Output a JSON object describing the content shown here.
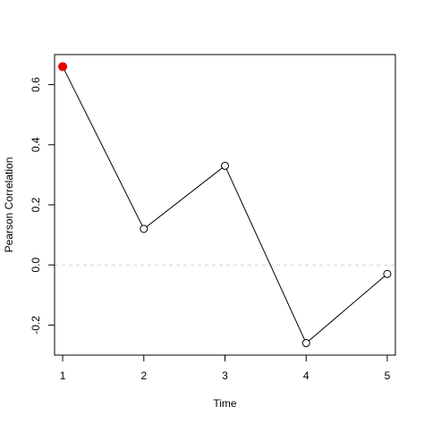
{
  "chart_data": {
    "type": "line",
    "xlabel": "Time",
    "ylabel": "Pearson Correlation",
    "x": [
      1,
      2,
      3,
      4,
      5
    ],
    "y": [
      0.66,
      0.12,
      0.33,
      -0.26,
      -0.03
    ],
    "xlim": [
      0.9,
      5.1
    ],
    "ylim": [
      -0.3,
      0.7
    ],
    "xticks": [
      "1",
      "2",
      "3",
      "4",
      "5"
    ],
    "yticks": [
      "-0.2",
      "0.0",
      "0.2",
      "0.4",
      "0.6"
    ],
    "highlight_index": 0,
    "highlight_color": "#e60000",
    "reference_line": {
      "y": 0.0,
      "color": "#d3d3d3",
      "style": "dashed"
    },
    "grid": false
  }
}
